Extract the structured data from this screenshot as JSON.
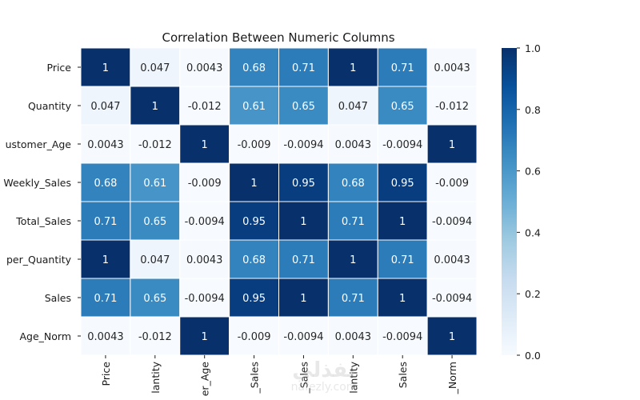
{
  "chart_data": {
    "type": "heatmap",
    "title": "Correlation Between Numeric Columns",
    "colormap": "Blues",
    "row_labels": [
      "Price",
      "Quantity",
      "ustomer_Age",
      "Weekly_Sales",
      "Total_Sales",
      "per_Quantity",
      "Sales",
      "Age_Norm"
    ],
    "col_labels": [
      "Price",
      "lantity",
      "er_Age",
      "_Sales",
      "_Sales",
      "lantity",
      "Sales",
      "_Norm"
    ],
    "values": [
      [
        1,
        0.047,
        0.0043,
        0.68,
        0.71,
        1,
        0.71,
        0.0043
      ],
      [
        0.047,
        1,
        -0.012,
        0.61,
        0.65,
        0.047,
        0.65,
        -0.012
      ],
      [
        0.0043,
        -0.012,
        1,
        -0.009,
        -0.0094,
        0.0043,
        -0.0094,
        1
      ],
      [
        0.68,
        0.61,
        -0.009,
        1,
        0.95,
        0.68,
        0.95,
        -0.009
      ],
      [
        0.71,
        0.65,
        -0.0094,
        0.95,
        1,
        0.71,
        1,
        -0.0094
      ],
      [
        1,
        0.047,
        0.0043,
        0.68,
        0.71,
        1,
        0.71,
        0.0043
      ],
      [
        0.71,
        0.65,
        -0.0094,
        0.95,
        1,
        0.71,
        1,
        -0.0094
      ],
      [
        0.0043,
        -0.012,
        1,
        -0.009,
        -0.0094,
        0.0043,
        -0.0094,
        1
      ]
    ],
    "annotations": true,
    "colorbar": {
      "range": [
        0.0,
        1.0
      ],
      "ticks": [
        "0.0",
        "0.2",
        "0.4",
        "0.6",
        "0.8",
        "1.0"
      ],
      "placement": "right"
    },
    "grid_lines_color": "#ffffff"
  },
  "watermark": {
    "arabic": "نفذلي",
    "latin": "nafezly.com"
  }
}
